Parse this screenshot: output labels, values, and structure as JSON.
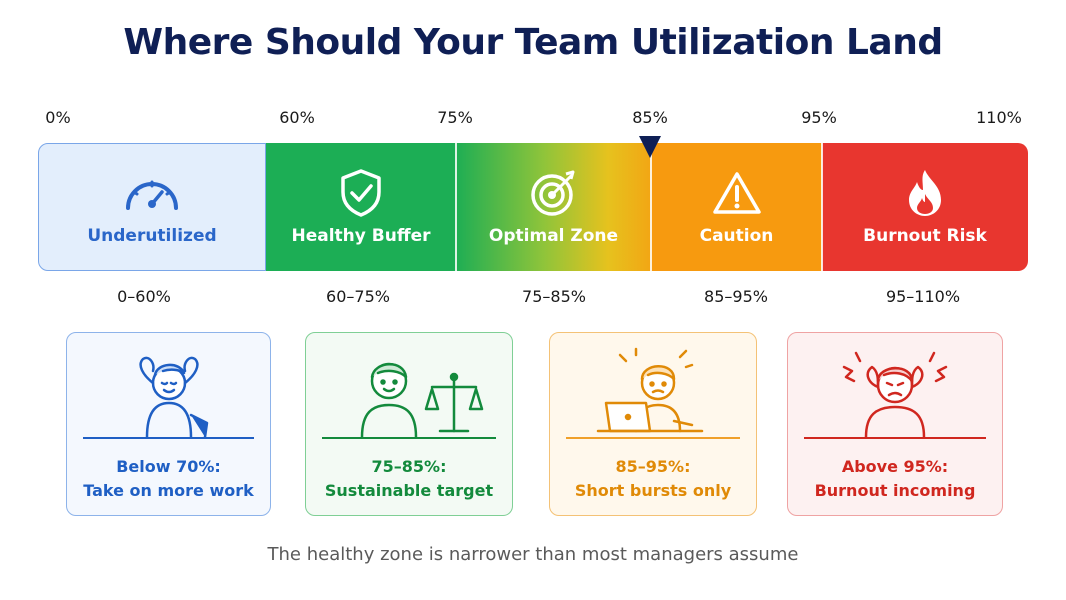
{
  "title": "Where Should Your Team Utilization Land",
  "ticks": [
    "0%",
    "60%",
    "75%",
    "85%",
    "95%",
    "110%"
  ],
  "marker_value": "85%",
  "zones": [
    {
      "label": "Underutilized",
      "icon": "speedometer-icon",
      "range": "0–60%"
    },
    {
      "label": "Healthy Buffer",
      "icon": "shield-check-icon",
      "range": "60–75%"
    },
    {
      "label": "Optimal Zone",
      "icon": "target-icon",
      "range": "75–85%"
    },
    {
      "label": "Caution",
      "icon": "warning-triangle-icon",
      "range": "85–95%"
    },
    {
      "label": "Burnout Risk",
      "icon": "flame-icon",
      "range": "95–110%"
    }
  ],
  "cards": [
    {
      "line1": "Below 70%:",
      "line2": "Take on more work",
      "illustration": "relaxed-person-illustration",
      "color": "#1f5fc4"
    },
    {
      "line1": "75–85%:",
      "line2": "Sustainable target",
      "illustration": "balanced-person-scale-illustration",
      "color": "#138a3c"
    },
    {
      "line1": "85–95%:",
      "line2": "Short bursts only",
      "illustration": "busy-person-laptop-illustration",
      "color": "#e08a07"
    },
    {
      "line1": "Above 95%:",
      "line2": "Burnout incoming",
      "illustration": "stressed-person-illustration",
      "color": "#d0271f"
    }
  ],
  "caption": "The healthy zone is narrower than most managers assume",
  "colors": {
    "title": "#0f1f55",
    "underutilized": "#e3eefc",
    "healthy": "#1cae55",
    "optimal_start": "#1eae54",
    "optimal_end": "#f2a614",
    "caution": "#f79a0f",
    "burnout": "#e8362f"
  }
}
